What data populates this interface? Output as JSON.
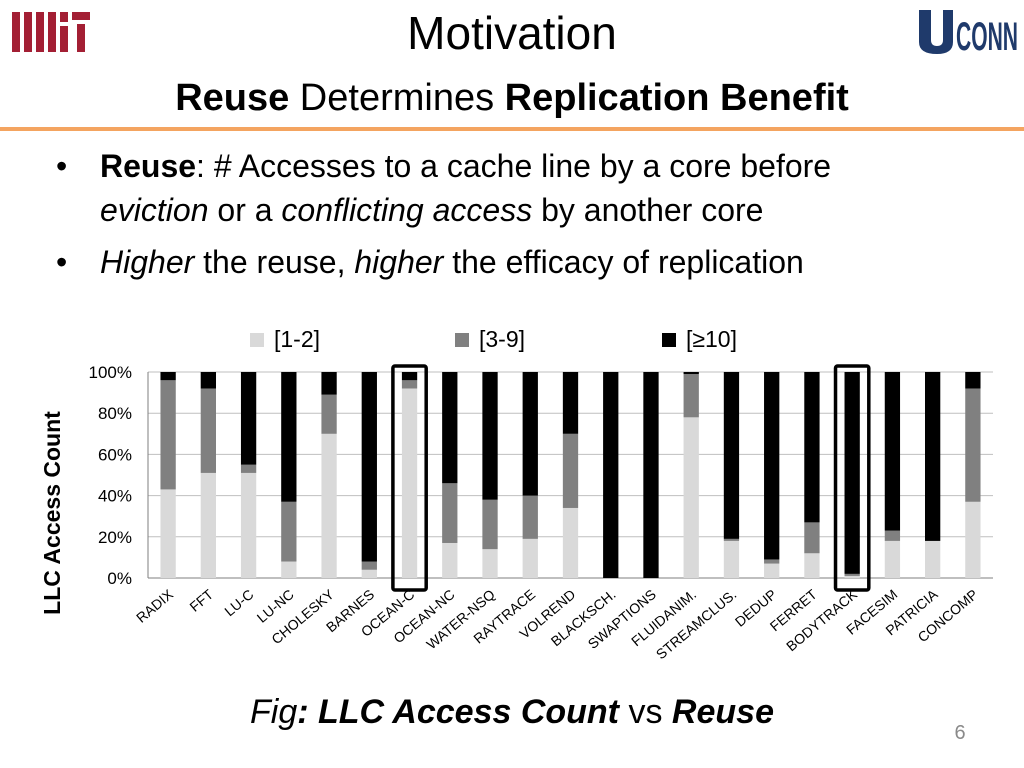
{
  "logos": {
    "left_text": "MIT",
    "right_text": "UCONN"
  },
  "colors": {
    "accent_rule": "#f4a460",
    "mit_red": "#a31f34",
    "uconn_blue": "#1f3a6b",
    "series": [
      "#d9d9d9",
      "#808080",
      "#000000"
    ],
    "highlight_box": "#000000"
  },
  "slide": {
    "title": "Motivation",
    "subtitle": {
      "part1": "Reuse",
      "part2": " Determines ",
      "part3": "Replication Benefit"
    },
    "bullets": [
      {
        "bullet": "•",
        "bold": "Reuse",
        "t1": ": # Accesses to a cache line by a core before",
        "i1": "eviction",
        "t2": " or a ",
        "i2": "conflicting access",
        "t3": " by another core"
      },
      {
        "bullet": "•",
        "i1": "Higher",
        "t1": " the reuse, ",
        "i2": "higher",
        "t2": " the efficacy of replication"
      }
    ],
    "caption": {
      "fig": "Fig",
      "colon_bold": ": LLC Access Count",
      "vs": " vs ",
      "reuse": "Reuse"
    },
    "page_number": "6"
  },
  "chart_data": {
    "type": "bar",
    "stacked": true,
    "ylabel": "LLC Access Count",
    "ylim": [
      0,
      100
    ],
    "yticks": [
      "0%",
      "20%",
      "40%",
      "60%",
      "80%",
      "100%"
    ],
    "legend_position": "top",
    "grid": true,
    "categories": [
      "RADIX",
      "FFT",
      "LU-C",
      "LU-NC",
      "CHOLESKY",
      "BARNES",
      "OCEAN-C",
      "OCEAN-NC",
      "WATER-NSQ",
      "RAYTRACE",
      "VOLREND",
      "BLACKSCH.",
      "SWAPTIONS",
      "FLUIDANIM.",
      "STREAMCLUS.",
      "DEDUP",
      "FERRET",
      "BODYTRACK",
      "FACESIM",
      "PATRICIA",
      "CONCOMP"
    ],
    "series": [
      {
        "name": "[1-2]",
        "values": [
          43,
          51,
          51,
          8,
          70,
          4,
          92,
          17,
          14,
          19,
          34,
          0,
          0,
          78,
          18,
          7,
          12,
          1,
          18,
          18,
          37
        ]
      },
      {
        "name": "[3-9]",
        "values": [
          53,
          41,
          4,
          29,
          19,
          4,
          4,
          29,
          24,
          21,
          36,
          0,
          0,
          21,
          1,
          2,
          15,
          1,
          5,
          0,
          55
        ]
      },
      {
        "name": "[≥10]",
        "values": [
          4,
          8,
          45,
          63,
          11,
          92,
          4,
          54,
          62,
          60,
          30,
          100,
          100,
          1,
          81,
          91,
          73,
          98,
          77,
          82,
          8
        ]
      }
    ],
    "highlighted": [
      "OCEAN-C",
      "BODYTRACK"
    ]
  }
}
